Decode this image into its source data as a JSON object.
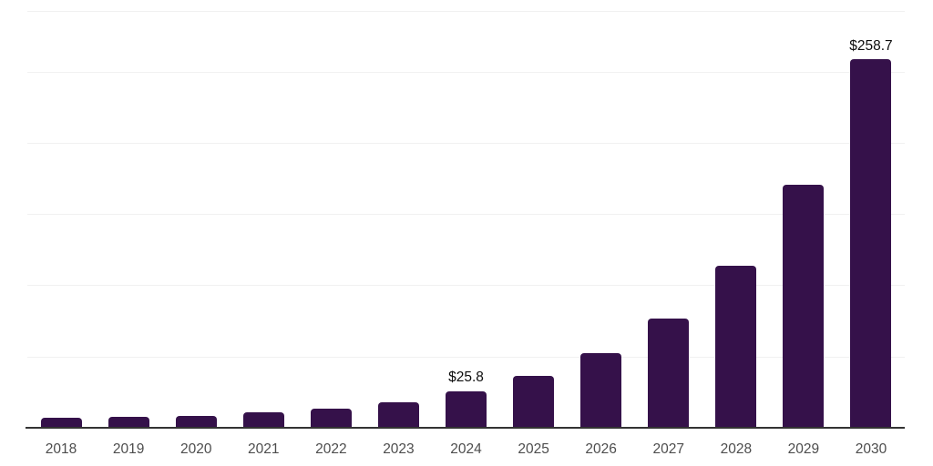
{
  "chart_data": {
    "type": "bar",
    "title": "",
    "xlabel": "",
    "ylabel": "",
    "categories": [
      "2018",
      "2019",
      "2020",
      "2021",
      "2022",
      "2023",
      "2024",
      "2025",
      "2026",
      "2027",
      "2028",
      "2029",
      "2030"
    ],
    "values": [
      6.8,
      7.7,
      8.5,
      10.7,
      13.2,
      18.1,
      25.8,
      36.6,
      52.2,
      76.7,
      113.5,
      170.8,
      258.7
    ],
    "labeled_points": [
      {
        "category": "2024",
        "label": "$25.8"
      },
      {
        "category": "2030",
        "label": "$258.7"
      }
    ],
    "ylim": [
      0,
      292
    ],
    "gridline_values": [
      50,
      100,
      150,
      200,
      250
    ],
    "grid": true,
    "legend": false,
    "bar_color": "#35114a",
    "axis_line_color": "#333333",
    "gridline_color": "#f1f1f1",
    "tick_label_color": "#4d4d4d",
    "data_label_color": "#0d0d0d"
  }
}
